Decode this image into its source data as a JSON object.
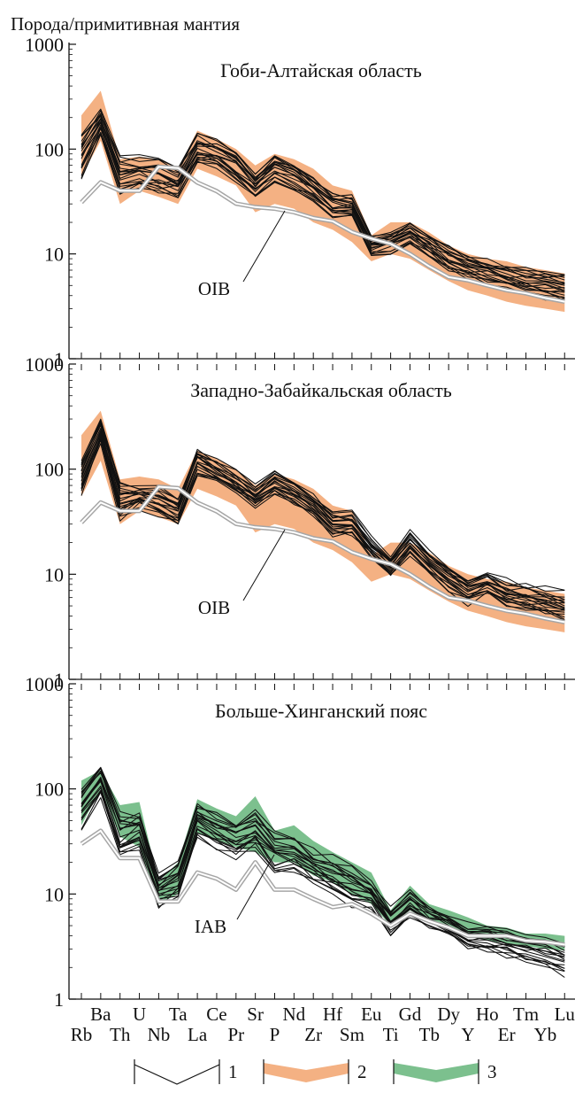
{
  "y_axis_label": "Порода/примитивная мантия",
  "elements_top_row": [
    "Ba",
    "U",
    "Ta",
    "Ce",
    "Sr",
    "Nd",
    "Hf",
    "Eu",
    "Gd",
    "Dy",
    "Ho",
    "Tm",
    "Lu"
  ],
  "elements_bottom_row": [
    "Rb",
    "Th",
    "Nb",
    "La",
    "Pr",
    "P",
    "Zr",
    "Sm",
    "Ti",
    "Tb",
    "Y",
    "Er",
    "Yb"
  ],
  "y_tick_labels": [
    "1",
    "10",
    "100",
    "1000"
  ],
  "legend": [
    {
      "num": "1",
      "kind": "line",
      "color": "#111111"
    },
    {
      "num": "2",
      "kind": "band",
      "color": "#f4b183"
    },
    {
      "num": "3",
      "kind": "band",
      "color": "#7cc08e"
    }
  ],
  "colors": {
    "sample_line": "#111111",
    "field_orange": "#f4b183",
    "field_green": "#7cc08e",
    "reference_gray": "#a6a6a6"
  },
  "chart_data": [
    {
      "type": "line",
      "title": "Гоби-Алтайская область",
      "ylabel": "Порода/примитивная мантия",
      "y_scale": "log",
      "ylim": [
        1,
        1000
      ],
      "x": [
        "Rb",
        "Ba",
        "Th",
        "U",
        "Nb",
        "Ta",
        "La",
        "Ce",
        "Pr",
        "Sr",
        "P",
        "Nd",
        "Zr",
        "Hf",
        "Sm",
        "Eu",
        "Ti",
        "Gd",
        "Tb",
        "Dy",
        "Y",
        "Ho",
        "Er",
        "Tm",
        "Yb",
        "Lu"
      ],
      "reference": {
        "name": "OIB",
        "values": [
          31,
          48.2,
          40.1,
          40,
          68,
          66,
          48,
          39.7,
          30.2,
          28,
          27,
          25,
          22,
          20.5,
          16.2,
          14,
          12.5,
          10,
          7.6,
          6,
          5.6,
          5,
          4.5,
          4.2,
          3.8,
          3.5
        ]
      },
      "band": {
        "legend": "2",
        "upper": [
          210,
          360,
          80,
          85,
          80,
          65,
          150,
          125,
          100,
          70,
          90,
          80,
          65,
          45,
          40,
          15,
          20,
          20,
          16,
          12,
          10,
          9,
          8.5,
          7.5,
          7,
          6.5
        ],
        "lower": [
          55,
          120,
          30,
          40,
          35,
          30,
          65,
          55,
          45,
          25,
          30,
          27,
          20,
          17,
          13,
          8.5,
          10,
          9,
          7,
          5.5,
          4.5,
          4,
          3.5,
          3.2,
          3.0,
          2.8
        ]
      },
      "samples": {
        "legend": "1",
        "median": [
          85,
          175,
          55,
          60,
          55,
          48,
          100,
          90,
          70,
          45,
          65,
          55,
          42,
          30,
          28,
          12,
          13,
          16,
          12,
          9,
          7.5,
          6.8,
          6,
          5.5,
          5.2,
          4.8
        ],
        "spread": [
          1.6,
          1.4,
          1.5,
          1.4,
          1.5,
          1.4,
          1.4,
          1.35,
          1.4,
          1.3,
          1.35,
          1.35,
          1.3,
          1.3,
          1.3,
          1.25,
          1.3,
          1.3,
          1.3,
          1.3,
          1.3,
          1.3,
          1.35,
          1.35,
          1.35,
          1.4
        ]
      }
    },
    {
      "type": "line",
      "title": "Западно-Забайкальская область",
      "ylabel": "Порода/примитивная мантия",
      "y_scale": "log",
      "ylim": [
        1,
        1000
      ],
      "x": [
        "Rb",
        "Ba",
        "Th",
        "U",
        "Nb",
        "Ta",
        "La",
        "Ce",
        "Pr",
        "Sr",
        "P",
        "Nd",
        "Zr",
        "Hf",
        "Sm",
        "Eu",
        "Ti",
        "Gd",
        "Tb",
        "Dy",
        "Y",
        "Ho",
        "Er",
        "Tm",
        "Yb",
        "Lu"
      ],
      "reference": {
        "name": "OIB",
        "values": [
          31,
          48.2,
          40.1,
          40,
          68,
          66,
          48,
          39.7,
          30.2,
          28,
          27,
          25,
          22,
          20.5,
          16.2,
          14,
          12.5,
          10,
          7.6,
          6,
          5.6,
          5,
          4.5,
          4.2,
          3.8,
          3.5
        ]
      },
      "band": {
        "legend": "2",
        "upper": [
          210,
          360,
          80,
          85,
          80,
          65,
          150,
          125,
          100,
          70,
          90,
          80,
          65,
          45,
          40,
          15,
          20,
          20,
          16,
          12,
          10,
          9,
          8.5,
          7.5,
          7,
          6.5
        ],
        "lower": [
          55,
          120,
          30,
          40,
          35,
          30,
          65,
          55,
          45,
          25,
          30,
          27,
          20,
          17,
          13,
          8.5,
          10,
          9,
          7,
          5.5,
          4.5,
          4,
          3.5,
          3.2,
          3.0,
          2.8
        ]
      },
      "samples": {
        "legend": "1",
        "median": [
          85,
          230,
          50,
          55,
          50,
          40,
          120,
          95,
          75,
          55,
          75,
          60,
          45,
          30,
          30,
          18,
          12,
          20,
          13,
          9,
          7,
          8,
          6.5,
          6,
          5.5,
          5
        ],
        "spread": [
          1.5,
          1.3,
          1.5,
          1.3,
          1.35,
          1.35,
          1.35,
          1.3,
          1.3,
          1.3,
          1.3,
          1.3,
          1.3,
          1.3,
          1.3,
          1.25,
          1.3,
          1.3,
          1.3,
          1.3,
          1.35,
          1.3,
          1.35,
          1.35,
          1.35,
          1.4
        ]
      }
    },
    {
      "type": "line",
      "title": "Больше-Хинганский пояс",
      "ylabel": "Порода/примитивная мантия",
      "y_scale": "log",
      "ylim": [
        1,
        1000
      ],
      "x": [
        "Rb",
        "Ba",
        "Th",
        "U",
        "Nb",
        "Ta",
        "La",
        "Ce",
        "Pr",
        "Sr",
        "P",
        "Nd",
        "Zr",
        "Hf",
        "Sm",
        "Eu",
        "Ti",
        "Gd",
        "Tb",
        "Dy",
        "Y",
        "Ho",
        "Er",
        "Tm",
        "Yb",
        "Lu"
      ],
      "reference": {
        "name": "IAB",
        "values": [
          30,
          40,
          22,
          22,
          8.5,
          8.5,
          16,
          14,
          11,
          20,
          11,
          11,
          9,
          7.5,
          8,
          6.5,
          5,
          6.5,
          5.5,
          4.8,
          4,
          4,
          4,
          3.6,
          3.5,
          3.3
        ]
      },
      "band": {
        "legend": "3",
        "upper": [
          120,
          150,
          70,
          75,
          13,
          20,
          80,
          65,
          55,
          85,
          40,
          45,
          32,
          25,
          20,
          16,
          7,
          12,
          8,
          7,
          6,
          5,
          4.8,
          4.2,
          4.2,
          4.0
        ],
        "lower": [
          45,
          100,
          35,
          28,
          8,
          10,
          38,
          32,
          28,
          25,
          20,
          20,
          15,
          13,
          10,
          8,
          5,
          7,
          5.5,
          5,
          4,
          3.6,
          3.4,
          3.2,
          3.0,
          2.9
        ]
      },
      "samples": {
        "legend": "1",
        "median": [
          65,
          120,
          35,
          40,
          11,
          14,
          50,
          40,
          33,
          40,
          25,
          24,
          18,
          15,
          12,
          10,
          5.5,
          8,
          6,
          5,
          4,
          3.8,
          3.4,
          3.1,
          2.8,
          2.5
        ],
        "spread": [
          1.6,
          1.4,
          1.7,
          1.6,
          1.45,
          1.5,
          1.5,
          1.5,
          1.5,
          1.5,
          1.5,
          1.5,
          1.5,
          1.5,
          1.5,
          1.4,
          1.35,
          1.35,
          1.3,
          1.3,
          1.3,
          1.35,
          1.35,
          1.35,
          1.4,
          1.45
        ]
      }
    }
  ]
}
